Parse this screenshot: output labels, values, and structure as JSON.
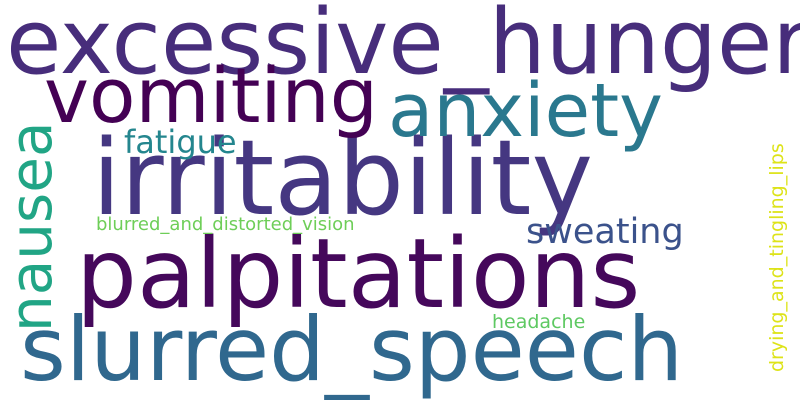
{
  "words": [
    {
      "text": "excessive_hunger",
      "color": "#472d7b"
    },
    {
      "text": "irritability",
      "color": "#453781"
    },
    {
      "text": "vomiting",
      "color": "#440154"
    },
    {
      "text": "anxiety",
      "color": "#2a788e"
    },
    {
      "text": "palpitations",
      "color": "#45085b"
    },
    {
      "text": "slurred_speech",
      "color": "#30688e"
    },
    {
      "text": "nausea",
      "color": "#21a585"
    },
    {
      "text": "fatigue",
      "color": "#24868e"
    },
    {
      "text": "sweating",
      "color": "#3b528b"
    },
    {
      "text": "blurred_and_distorted_vision",
      "color": "#6ece58"
    },
    {
      "text": "headache",
      "color": "#5ec962"
    },
    {
      "text": "drying_and_tingling_lips",
      "color": "#dde318"
    }
  ]
}
